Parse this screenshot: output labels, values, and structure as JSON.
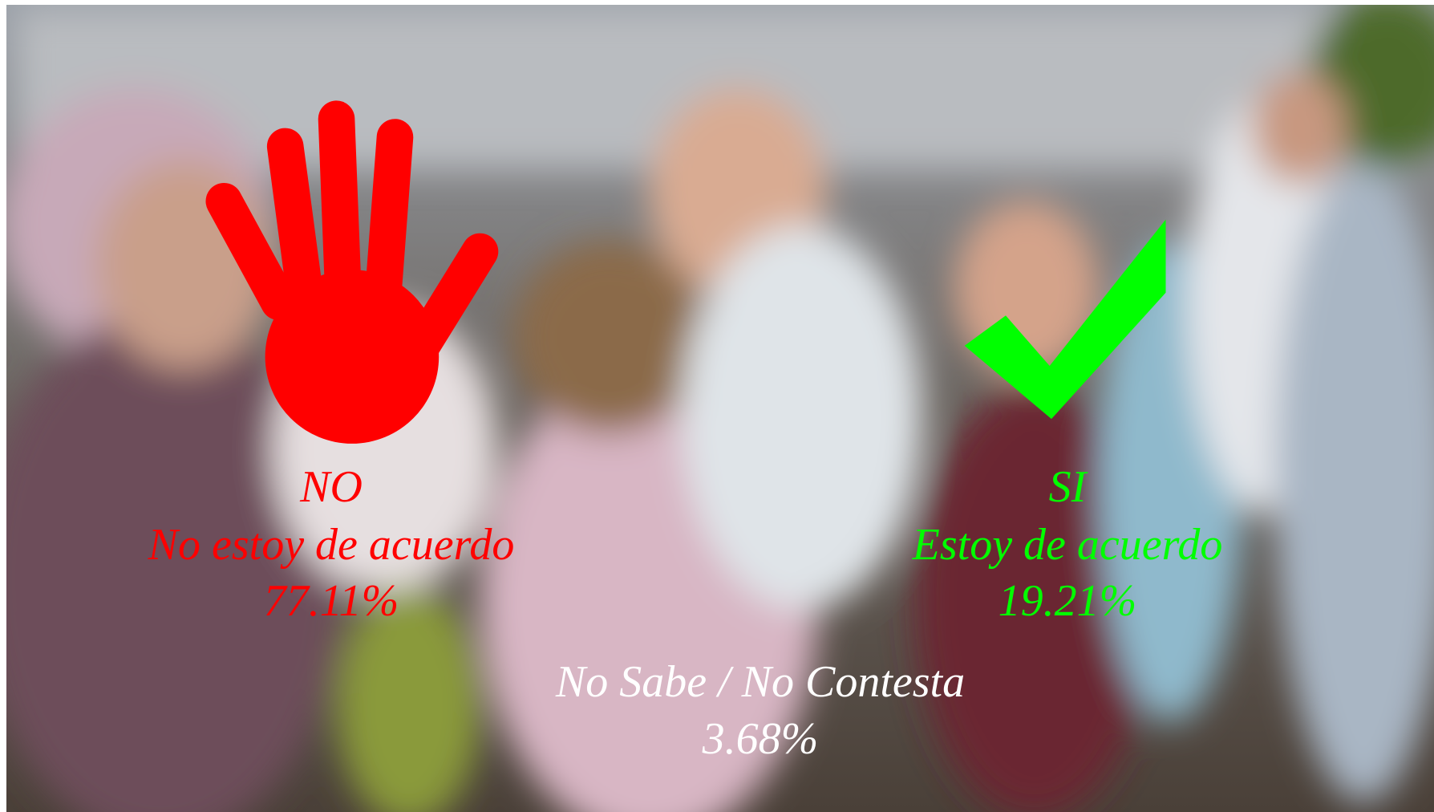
{
  "options": [
    {
      "label": "NO",
      "description": "No estoy de acuerdo",
      "percent": "77.11%"
    },
    {
      "label": "SI",
      "description": "Estoy de acuerdo",
      "percent": "19.21%"
    }
  ],
  "undecided": {
    "label": "No Sabe / No Contesta",
    "percent": "3.68%"
  }
}
